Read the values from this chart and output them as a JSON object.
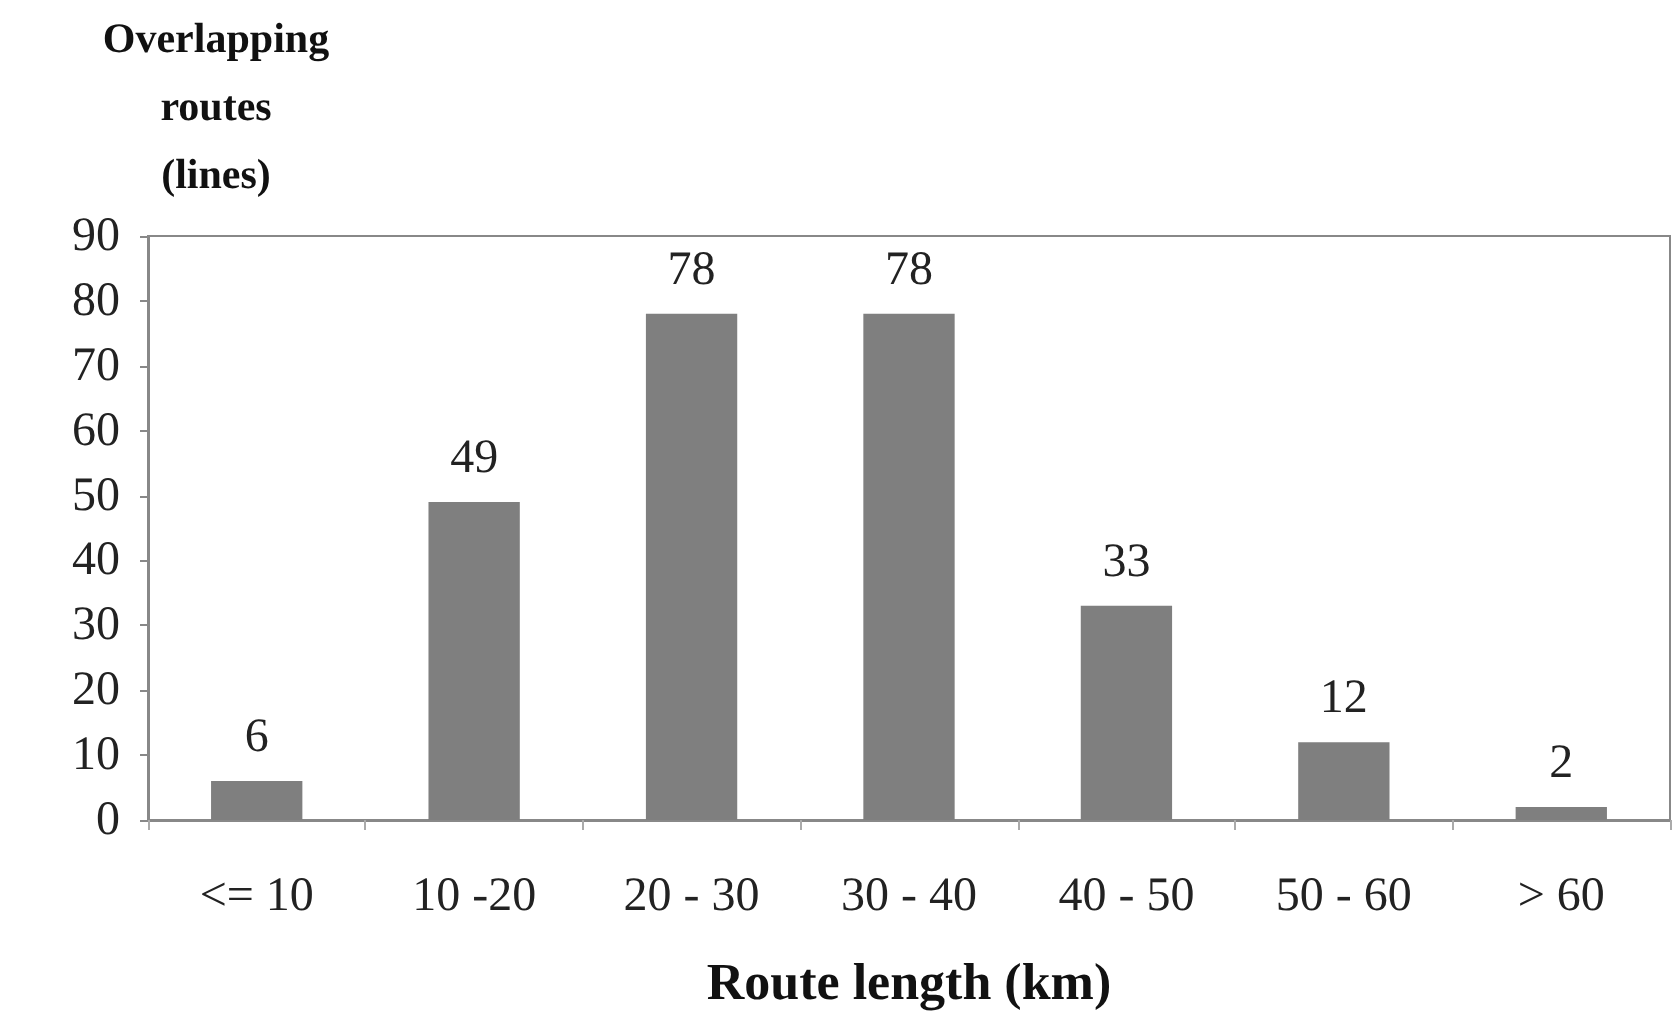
{
  "chart_data": {
    "type": "bar",
    "xlabel": "Route length (km)",
    "ylabel": "Overlapping routes (lines)",
    "categories": [
      "<= 10",
      "10 -20",
      "20 - 30",
      "30 - 40",
      "40 - 50",
      "50 - 60",
      "> 60"
    ],
    "values": [
      6,
      49,
      78,
      78,
      33,
      12,
      2
    ],
    "color": "#7f7f7f",
    "ylim": [
      0,
      90
    ],
    "yticks": [
      0,
      10,
      20,
      30,
      40,
      50,
      60,
      70,
      80,
      90
    ],
    "grid": false,
    "data_labels": true
  }
}
